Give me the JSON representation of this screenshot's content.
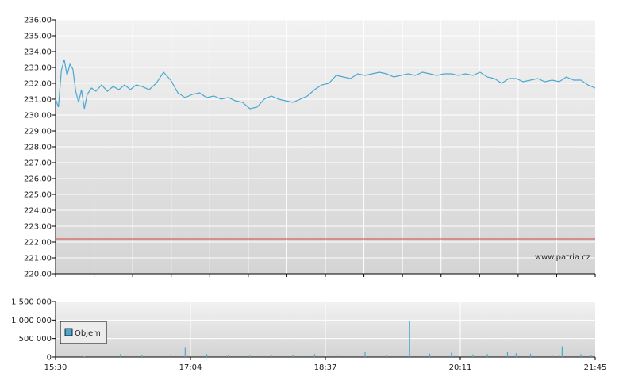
{
  "colors": {
    "price_line": "#4aa8d0",
    "reference_line": "#d04040",
    "volume_bar": "#4aa8d0",
    "grid": "#ffffff",
    "plot_bg_top": "#f2f2f2",
    "plot_bg_bottom": "#d4d4d4"
  },
  "chart_data": [
    {
      "type": "line",
      "watermark": "www.patria.cz",
      "ylim": [
        220,
        236
      ],
      "y_ticks": [
        "220,00",
        "221,00",
        "222,00",
        "223,00",
        "224,00",
        "225,00",
        "226,00",
        "227,00",
        "228,00",
        "229,00",
        "230,00",
        "231,00",
        "232,00",
        "233,00",
        "234,00",
        "235,00",
        "236,00"
      ],
      "x_tick_labels": [
        "15:30",
        "17:04",
        "18:37",
        "20:11",
        "21:45"
      ],
      "reference_value": 222.2,
      "x_range_minutes": [
        0,
        375
      ],
      "series": [
        {
          "x": [
            0,
            2,
            4,
            6,
            8,
            10,
            12,
            14,
            16,
            18,
            20,
            22,
            25,
            28,
            32,
            36,
            40,
            44,
            48,
            52,
            56,
            60,
            65,
            70,
            75,
            80,
            85,
            90,
            95,
            100,
            105,
            110,
            115,
            120,
            125,
            130,
            135,
            140,
            145,
            150,
            155,
            160,
            165,
            170,
            175,
            180,
            185,
            190,
            195,
            200,
            205,
            210,
            215,
            220,
            225,
            230,
            235,
            240,
            245,
            250,
            255,
            260,
            265,
            270,
            275,
            280,
            285,
            290,
            295,
            300,
            305,
            310,
            315,
            320,
            325,
            330,
            335,
            340,
            345,
            350,
            355,
            360,
            365,
            370,
            375
          ],
          "y": [
            231.0,
            230.5,
            232.8,
            233.5,
            232.5,
            233.2,
            232.9,
            231.5,
            230.8,
            231.6,
            230.4,
            231.3,
            231.7,
            231.5,
            231.9,
            231.5,
            231.8,
            231.6,
            231.9,
            231.6,
            231.9,
            231.8,
            231.6,
            232.0,
            232.7,
            232.2,
            231.4,
            231.1,
            231.3,
            231.4,
            231.1,
            231.2,
            231.0,
            231.1,
            230.9,
            230.8,
            230.4,
            230.5,
            231.0,
            231.2,
            231.0,
            230.9,
            230.8,
            231.0,
            231.2,
            231.6,
            231.9,
            232.0,
            232.5,
            232.4,
            232.3,
            232.6,
            232.5,
            232.6,
            232.7,
            232.6,
            232.4,
            232.5,
            232.6,
            232.5,
            232.7,
            232.6,
            232.5,
            232.6,
            232.6,
            232.5,
            232.6,
            232.5,
            232.7,
            232.4,
            232.3,
            232.0,
            232.3,
            232.3,
            232.1,
            232.2,
            232.3,
            232.1,
            232.2,
            232.1,
            232.4,
            232.2,
            232.2,
            231.9,
            231.7
          ]
        }
      ]
    },
    {
      "type": "bar",
      "ylim": [
        0,
        1500000
      ],
      "y_ticks": [
        "0",
        "500 000",
        "1 000 000",
        "1 500 000"
      ],
      "x_tick_labels": [
        "15:30",
        "17:04",
        "18:37",
        "20:11",
        "21:45"
      ],
      "legend": "Objem",
      "legend_position": "left",
      "x_range_minutes": [
        0,
        375
      ],
      "series": [
        {
          "name": "Objem",
          "x": [
            20,
            45,
            60,
            80,
            90,
            105,
            120,
            135,
            150,
            165,
            180,
            195,
            215,
            230,
            246,
            260,
            275,
            290,
            300,
            314,
            320,
            330,
            345,
            350,
            352,
            365,
            372
          ],
          "y": [
            15000,
            80000,
            60000,
            70000,
            270000,
            80000,
            60000,
            40000,
            50000,
            60000,
            80000,
            60000,
            140000,
            60000,
            970000,
            90000,
            120000,
            70000,
            80000,
            140000,
            100000,
            90000,
            60000,
            70000,
            290000,
            80000,
            50000
          ]
        }
      ]
    }
  ]
}
